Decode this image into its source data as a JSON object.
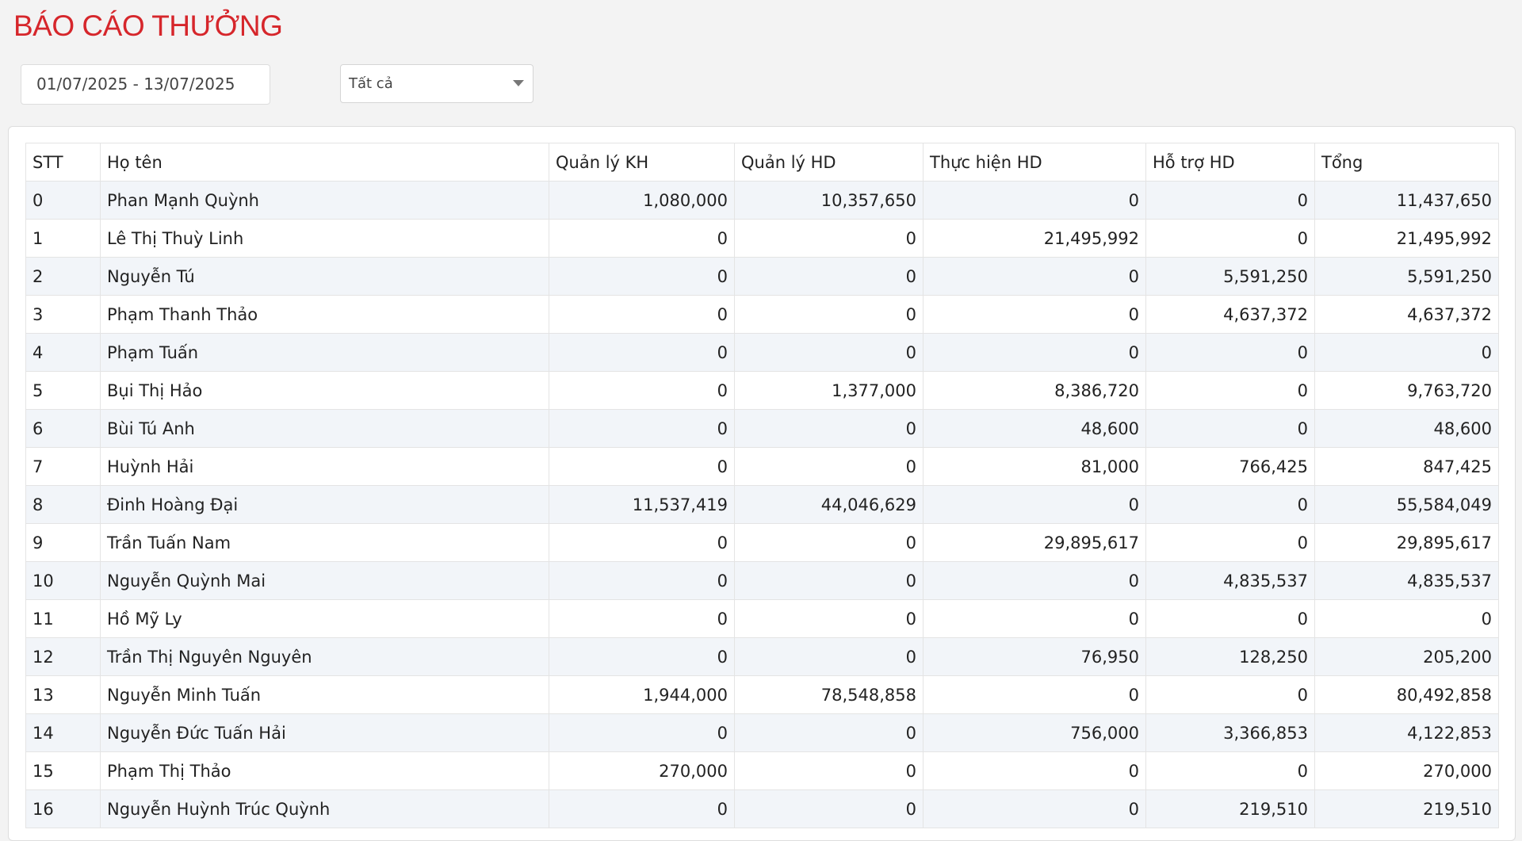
{
  "header": {
    "title": "BÁO CÁO THƯỞNG"
  },
  "filters": {
    "date_range": "01/07/2025 - 13/07/2025",
    "status": "Tất cả"
  },
  "table": {
    "columns": [
      "STT",
      "Họ tên",
      "Quản lý KH",
      "Quản lý HD",
      "Thực hiện HD",
      "Hỗ trợ HD",
      "Tổng"
    ],
    "rows": [
      [
        "0",
        "Phan Mạnh Quỳnh",
        "1,080,000",
        "10,357,650",
        "0",
        "0",
        "11,437,650"
      ],
      [
        "1",
        "Lê Thị Thuỳ Linh",
        "0",
        "0",
        "21,495,992",
        "0",
        "21,495,992"
      ],
      [
        "2",
        "Nguyễn Tú",
        "0",
        "0",
        "0",
        "5,591,250",
        "5,591,250"
      ],
      [
        "3",
        "Phạm Thanh Thảo",
        "0",
        "0",
        "0",
        "4,637,372",
        "4,637,372"
      ],
      [
        "4",
        "Phạm Tuấn",
        "0",
        "0",
        "0",
        "0",
        "0"
      ],
      [
        "5",
        "Bụi Thị Hảo",
        "0",
        "1,377,000",
        "8,386,720",
        "0",
        "9,763,720"
      ],
      [
        "6",
        "Bùi Tú Anh",
        "0",
        "0",
        "48,600",
        "0",
        "48,600"
      ],
      [
        "7",
        "Huỳnh Hải",
        "0",
        "0",
        "81,000",
        "766,425",
        "847,425"
      ],
      [
        "8",
        "Đinh Hoàng Đại",
        "11,537,419",
        "44,046,629",
        "0",
        "0",
        "55,584,049"
      ],
      [
        "9",
        "Trần Tuấn Nam",
        "0",
        "0",
        "29,895,617",
        "0",
        "29,895,617"
      ],
      [
        "10",
        "Nguyễn Quỳnh Mai",
        "0",
        "0",
        "0",
        "4,835,537",
        "4,835,537"
      ],
      [
        "11",
        "Hồ Mỹ Ly",
        "0",
        "0",
        "0",
        "0",
        "0"
      ],
      [
        "12",
        "Trần Thị Nguyên Nguyên",
        "0",
        "0",
        "76,950",
        "128,250",
        "205,200"
      ],
      [
        "13",
        "Nguyễn Minh Tuấn",
        "1,944,000",
        "78,548,858",
        "0",
        "0",
        "80,492,858"
      ],
      [
        "14",
        "Nguyễn Đức Tuấn Hải",
        "0",
        "0",
        "756,000",
        "3,366,853",
        "4,122,853"
      ],
      [
        "15",
        "Phạm Thị Thảo",
        "270,000",
        "0",
        "0",
        "0",
        "270,000"
      ],
      [
        "16",
        "Nguyễn Huỳnh Trúc Quỳnh",
        "0",
        "0",
        "0",
        "219,510",
        "219,510"
      ]
    ]
  }
}
